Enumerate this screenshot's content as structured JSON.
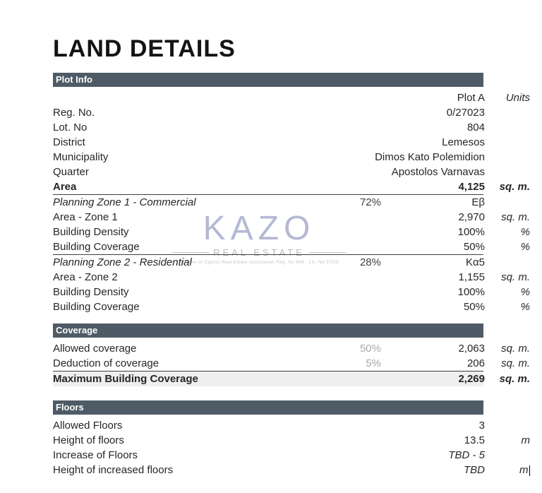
{
  "title": "LAND DETAILS",
  "watermark": {
    "logo": "KAZO",
    "subtitle": "REAL ESTATE",
    "fine_print": "Member of Cyprus Real Estate Association    Reg. No 694 - Lic. No 372/E"
  },
  "colors": {
    "section_bar": "#4e5b66",
    "rule": "#3f3f3f",
    "highlight_row": "#efefef",
    "muted_percent": "#a8a8a8",
    "watermark_logo": "#a8adcd",
    "watermark_text": "#b9b9bf"
  },
  "sections": [
    {
      "key": "plot-info",
      "title": "Plot Info",
      "rows": [
        {
          "label": "",
          "value": "Plot A",
          "units": "Units"
        },
        {
          "label": "Reg. No.",
          "value": "0/27023",
          "units": ""
        },
        {
          "label": "Lot. No",
          "value": "804",
          "units": ""
        },
        {
          "label": "District",
          "value": "Lemesos",
          "units": ""
        },
        {
          "label": "Municipality",
          "value": "Dimos Kato Polemidion",
          "units": ""
        },
        {
          "label": "Quarter",
          "value": "Apostolos Varnavas",
          "units": ""
        },
        {
          "label": "Area",
          "value": "4,125",
          "units": "sq. m.",
          "bold": true,
          "rule_below": true
        },
        {
          "label": "Planning Zone 1 - Commercial",
          "label_italic": true,
          "mid": "72%",
          "value": "Eβ",
          "units": ""
        },
        {
          "label": "Area - Zone 1",
          "value": "2,970",
          "units": "sq. m."
        },
        {
          "label": "Building Density",
          "value": "100%",
          "units": "%"
        },
        {
          "label": "Building Coverage",
          "value": "50%",
          "units": "%",
          "rule_below": true
        },
        {
          "label": "Planning Zone 2 - Residential",
          "label_italic": true,
          "mid": "28%",
          "value": "Kα5",
          "units": ""
        },
        {
          "label": "Area - Zone 2",
          "value": "1,155",
          "units": "sq. m."
        },
        {
          "label": "Building Density",
          "value": "100%",
          "units": "%"
        },
        {
          "label": "Building Coverage",
          "value": "50%",
          "units": "%"
        }
      ]
    },
    {
      "key": "coverage",
      "title": "Coverage",
      "rows": [
        {
          "label": "Allowed coverage",
          "mid": "50%",
          "mid_muted": true,
          "value": "2,063",
          "units": "sq. m."
        },
        {
          "label": "Deduction of coverage",
          "mid": "5%",
          "mid_muted": true,
          "value": "206",
          "units": "sq. m.",
          "rule_below": true
        },
        {
          "label": "Maximum Building Coverage",
          "value": "2,269",
          "units": "sq. m.",
          "bold": true,
          "highlight": true
        }
      ]
    },
    {
      "key": "floors",
      "title": "Floors",
      "rows": [
        {
          "label": "Allowed Floors",
          "value": "3",
          "units": ""
        },
        {
          "label": "Height of floors",
          "value": "13.5",
          "units": ""
        },
        {
          "label": "Increase of Floors",
          "value": "TBD - 5",
          "value_italic": true,
          "units": ""
        },
        {
          "label": "Height of increased floors",
          "value": "TBD",
          "value_italic": true,
          "units": "m",
          "caret": true
        }
      ]
    }
  ],
  "floors_height_unit": "m"
}
